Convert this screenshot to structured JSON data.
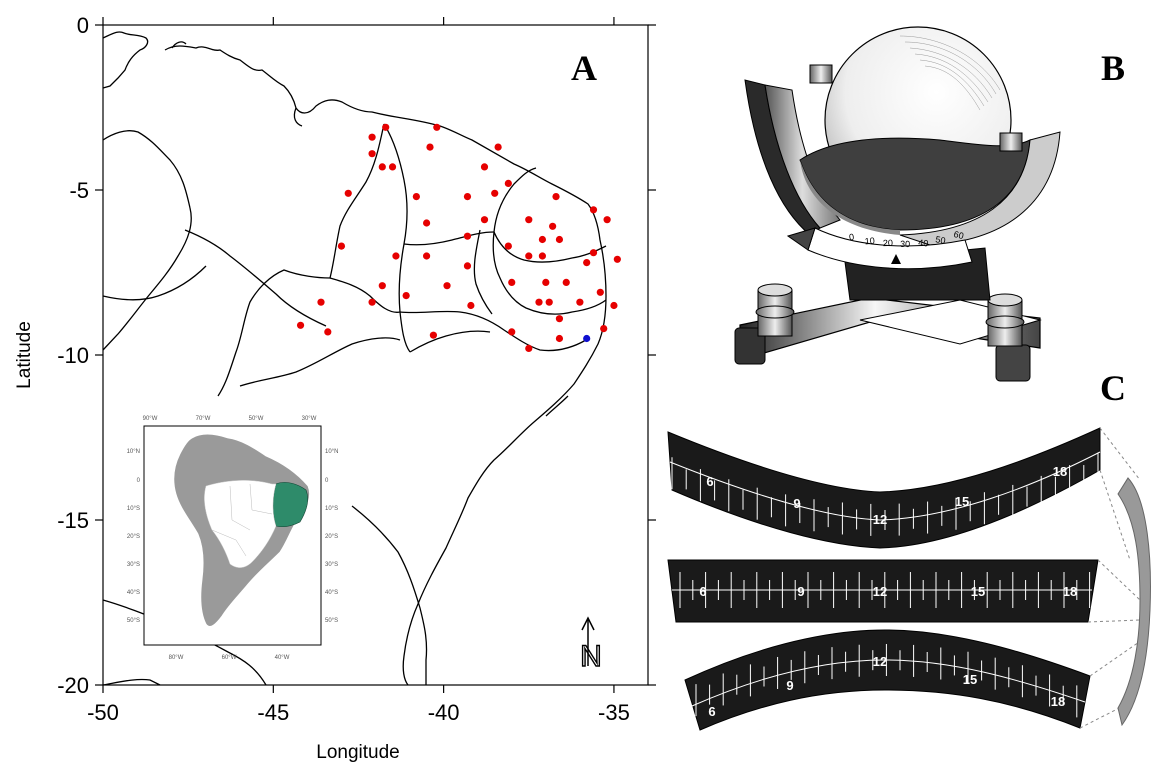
{
  "panels": {
    "a": "A",
    "b": "B",
    "c": "C"
  },
  "map": {
    "xlabel": "Longitude",
    "ylabel": "Latitude",
    "xticks": [
      -50,
      -45,
      -40,
      -35
    ],
    "yticks": [
      0,
      -5,
      -10,
      -15,
      -20
    ],
    "xlim": [
      -50,
      -34
    ],
    "ylim": [
      -20,
      0
    ],
    "north_label": "N",
    "stations_red": [
      [
        -41.7,
        -3.1
      ],
      [
        -42.1,
        -3.4
      ],
      [
        -42.1,
        -3.9
      ],
      [
        -41.8,
        -4.3
      ],
      [
        -41.5,
        -4.3
      ],
      [
        -42.8,
        -5.1
      ],
      [
        -43,
        -6.7
      ],
      [
        -41.4,
        -7.0
      ],
      [
        -41.8,
        -7.9
      ],
      [
        -41.1,
        -8.2
      ],
      [
        -42.1,
        -8.4
      ],
      [
        -43.6,
        -8.4
      ],
      [
        -44.2,
        -9.1
      ],
      [
        -43.4,
        -9.3
      ],
      [
        -40.3,
        -9.4
      ],
      [
        -39.9,
        -7.9
      ],
      [
        -40.5,
        -7.0
      ],
      [
        -40.5,
        -6.0
      ],
      [
        -40.8,
        -5.2
      ],
      [
        -40.4,
        -3.7
      ],
      [
        -40.2,
        -3.1
      ],
      [
        -39.3,
        -5.2
      ],
      [
        -39.3,
        -6.4
      ],
      [
        -39.3,
        -7.3
      ],
      [
        -38.8,
        -4.3
      ],
      [
        -38.4,
        -3.7
      ],
      [
        -38.1,
        -4.8
      ],
      [
        -38.8,
        -5.9
      ],
      [
        -38.5,
        -5.1
      ],
      [
        -38.1,
        -6.7
      ],
      [
        -38.0,
        -7.8
      ],
      [
        -39.2,
        -8.5
      ],
      [
        -38.0,
        -9.3
      ],
      [
        -37.5,
        -9.8
      ],
      [
        -37.2,
        -8.4
      ],
      [
        -36.9,
        -8.4
      ],
      [
        -37.0,
        -7.8
      ],
      [
        -37.1,
        -7.0
      ],
      [
        -37.1,
        -6.5
      ],
      [
        -36.8,
        -6.1
      ],
      [
        -36.6,
        -6.5
      ],
      [
        -37.5,
        -5.9
      ],
      [
        -37.5,
        -7.0
      ],
      [
        -36.7,
        -5.2
      ],
      [
        -36.4,
        -7.8
      ],
      [
        -36.6,
        -8.9
      ],
      [
        -36.6,
        -9.5
      ],
      [
        -36.0,
        -8.4
      ],
      [
        -35.6,
        -5.6
      ],
      [
        -35.8,
        -7.2
      ],
      [
        -35.6,
        -6.9
      ],
      [
        -35.2,
        -5.9
      ],
      [
        -35.4,
        -8.1
      ],
      [
        -34.9,
        -7.1
      ],
      [
        -35.0,
        -8.5
      ],
      [
        -35.3,
        -9.2
      ]
    ],
    "stations_blue": [
      [
        -35.8,
        -9.5
      ]
    ]
  },
  "inset": {
    "top_labels": [
      "90°W",
      "70°W",
      "50°W",
      "30°W"
    ],
    "bottom_labels": [
      "80°W",
      "60°W",
      "40°W"
    ],
    "left_labels": [
      "10°N",
      "0",
      "10°S",
      "20°S",
      "30°S",
      "40°S",
      "50°S"
    ],
    "right_labels": [
      "10°N",
      "0",
      "10°S",
      "20°S",
      "30°S",
      "40°S",
      "50°S"
    ]
  },
  "recorder": {
    "scale_labels": [
      "0",
      "10",
      "20",
      "30",
      "40",
      "50",
      "60"
    ]
  },
  "cards": {
    "curved_long": [
      "6",
      "9",
      "12",
      "15",
      "18"
    ],
    "straight": [
      "6",
      "9",
      "12",
      "15",
      "18"
    ],
    "curved_short": [
      "6",
      "9",
      "12",
      "15",
      "18"
    ]
  },
  "colors": {
    "station": "#e60000",
    "station_alt": "#1010d0",
    "region": "#2e8b6a",
    "land_inset": "#9a9a9a",
    "card": "#1a1a1a"
  }
}
